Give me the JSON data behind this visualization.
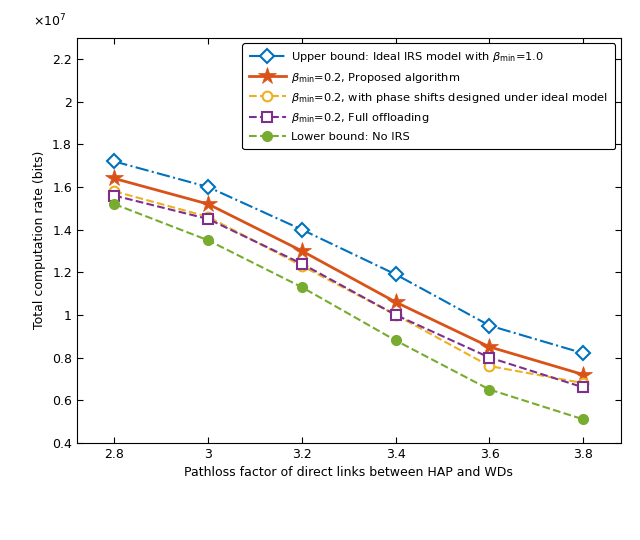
{
  "x": [
    2.8,
    3.0,
    3.2,
    3.4,
    3.6,
    3.8
  ],
  "upper_bound": [
    17200000.0,
    16000000.0,
    14000000.0,
    11900000.0,
    9500000.0,
    8200000.0
  ],
  "proposed": [
    16400000.0,
    15200000.0,
    13000000.0,
    10600000.0,
    8500000.0,
    7200000.0
  ],
  "ideal_phase": [
    15800000.0,
    14600000.0,
    12300000.0,
    10000000.0,
    7600000.0,
    6800000.0
  ],
  "full_offload": [
    15600000.0,
    14500000.0,
    12400000.0,
    10000000.0,
    8000000.0,
    6600000.0
  ],
  "no_irs": [
    15200000.0,
    13500000.0,
    11300000.0,
    8800000.0,
    6500000.0,
    5100000.0
  ],
  "colors": {
    "upper_bound": "#0072BD",
    "proposed": "#D95319",
    "ideal_phase": "#EDB120",
    "full_offload": "#7E2F8E",
    "no_irs": "#77AC30"
  },
  "xlabel": "Pathloss factor of direct links between HAP and WDs",
  "ylabel": "Total computation rate (bits)",
  "xlim": [
    2.72,
    3.88
  ],
  "ylim": [
    4000000.0,
    23000000.0
  ],
  "yticks": [
    4000000.0,
    6000000.0,
    8000000.0,
    10000000.0,
    12000000.0,
    14000000.0,
    16000000.0,
    18000000.0,
    20000000.0,
    22000000.0
  ],
  "ytick_labels": [
    "0.4",
    "0.6",
    "0.8",
    "1",
    "1.2",
    "1.4",
    "1.6",
    "1.8",
    "2",
    "2.2"
  ],
  "xticks": [
    2.8,
    3.0,
    3.2,
    3.4,
    3.6,
    3.8
  ],
  "xtick_labels": [
    "2.8",
    "3",
    "3.2",
    "3.4",
    "3.6",
    "3.8"
  ],
  "legend_labels": {
    "upper_bound": "Upper bound: Ideal IRS model with $\\beta_{\\rm min}$=1.0",
    "proposed": "$\\beta_{\\rm min}$=0.2, Proposed algorithm",
    "ideal_phase": "$\\beta_{\\rm min}$=0.2, with phase shifts designed under ideal model",
    "full_offload": "$\\beta_{\\rm min}$=0.2, Full offloading",
    "no_irs": "Lower bound: No IRS"
  },
  "figsize": [
    6.4,
    5.4
  ],
  "dpi": 100
}
